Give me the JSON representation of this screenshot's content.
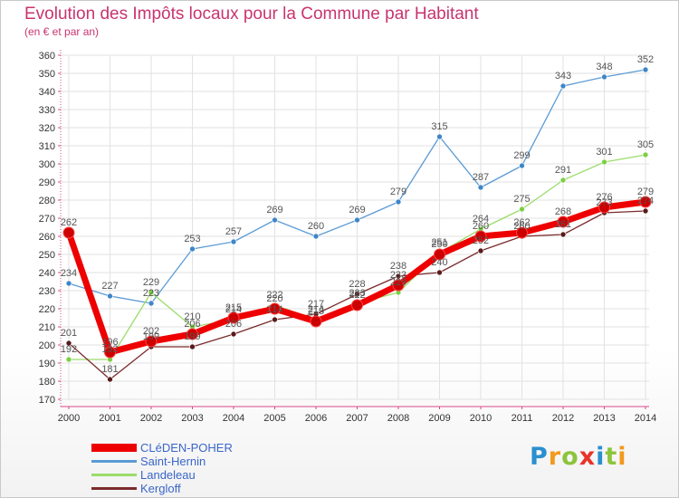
{
  "title": "Evolution des Impôts locaux pour la Commune par Habitant",
  "subtitle": "(en € et par an)",
  "logo": {
    "text": "Proxiti",
    "letters": [
      {
        "ch": "P",
        "color": "#2a8fd0"
      },
      {
        "ch": "r",
        "color": "#f29a1c"
      },
      {
        "ch": "o",
        "color": "#8cc43c"
      },
      {
        "ch": "x",
        "color": "#e8332a"
      },
      {
        "ch": "i",
        "color": "#2a8fd0"
      },
      {
        "ch": "t",
        "color": "#8cc43c"
      },
      {
        "ch": "i",
        "color": "#f29a1c"
      }
    ]
  },
  "chart_data": {
    "type": "line",
    "title": "Evolution des Impôts locaux pour la Commune par Habitant",
    "subtitle": "(en € et par an)",
    "categories": [
      "2000",
      "2001",
      "2002",
      "2003",
      "2004",
      "2005",
      "2006",
      "2007",
      "2008",
      "2009",
      "2010",
      "2011",
      "2012",
      "2013",
      "2014"
    ],
    "ylim": [
      170,
      360
    ],
    "yticks": [
      170,
      180,
      190,
      200,
      210,
      220,
      230,
      240,
      250,
      260,
      270,
      280,
      290,
      300,
      310,
      320,
      330,
      340,
      350,
      360
    ],
    "grid": true,
    "legend_position": "bottom-left",
    "series": [
      {
        "name": "Saint-Hernin",
        "color": "#5b9bd5",
        "dot": "#3f86c8",
        "values": [
          234,
          227,
          223,
          253,
          257,
          269,
          260,
          269,
          279,
          315,
          287,
          299,
          343,
          348,
          352
        ]
      },
      {
        "name": "Landeleau",
        "color": "#9bdc6a",
        "dot": "#7ccf45",
        "values": [
          192,
          192,
          229,
          210,
          214,
          222,
          214,
          223,
          229,
          251,
          264,
          275,
          291,
          301,
          305
        ]
      },
      {
        "name": "Kergloff",
        "color": "#7a2b2b",
        "dot": "#5a1a1a",
        "values": [
          201,
          181,
          199,
          199,
          206,
          214,
          217,
          228,
          238,
          240,
          252,
          260,
          261,
          273,
          274
        ]
      },
      {
        "name": "CLéDEN-POHER",
        "color": "#ee0000",
        "dot": "#cc0000",
        "values": [
          262,
          196,
          202,
          206,
          215,
          220,
          213,
          222,
          233,
          250,
          260,
          262,
          268,
          276,
          279
        ]
      }
    ],
    "value_labels": [
      [
        "234",
        "227",
        "223",
        "253",
        "257",
        "269",
        "260",
        "269",
        "279",
        "315",
        "287",
        "299",
        "343",
        "348",
        "352"
      ],
      [
        "192",
        "192",
        "229",
        "210",
        "214",
        "222",
        "214",
        "223",
        "229",
        "251",
        "264",
        "275",
        "291",
        "301",
        "305"
      ],
      [
        "201",
        "181",
        "199",
        "199",
        "206",
        "214",
        "217",
        "228",
        "238",
        "240",
        "252",
        "260",
        "261",
        "273",
        "274"
      ],
      [
        "262",
        "196",
        "202",
        "206",
        "215",
        "220",
        "213",
        "222",
        "233",
        "250",
        "260",
        "262",
        "268",
        "276",
        "279"
      ]
    ],
    "legend_order": [
      "CLéDEN-POHER",
      "Saint-Hernin",
      "Landeleau",
      "Kergloff"
    ]
  }
}
